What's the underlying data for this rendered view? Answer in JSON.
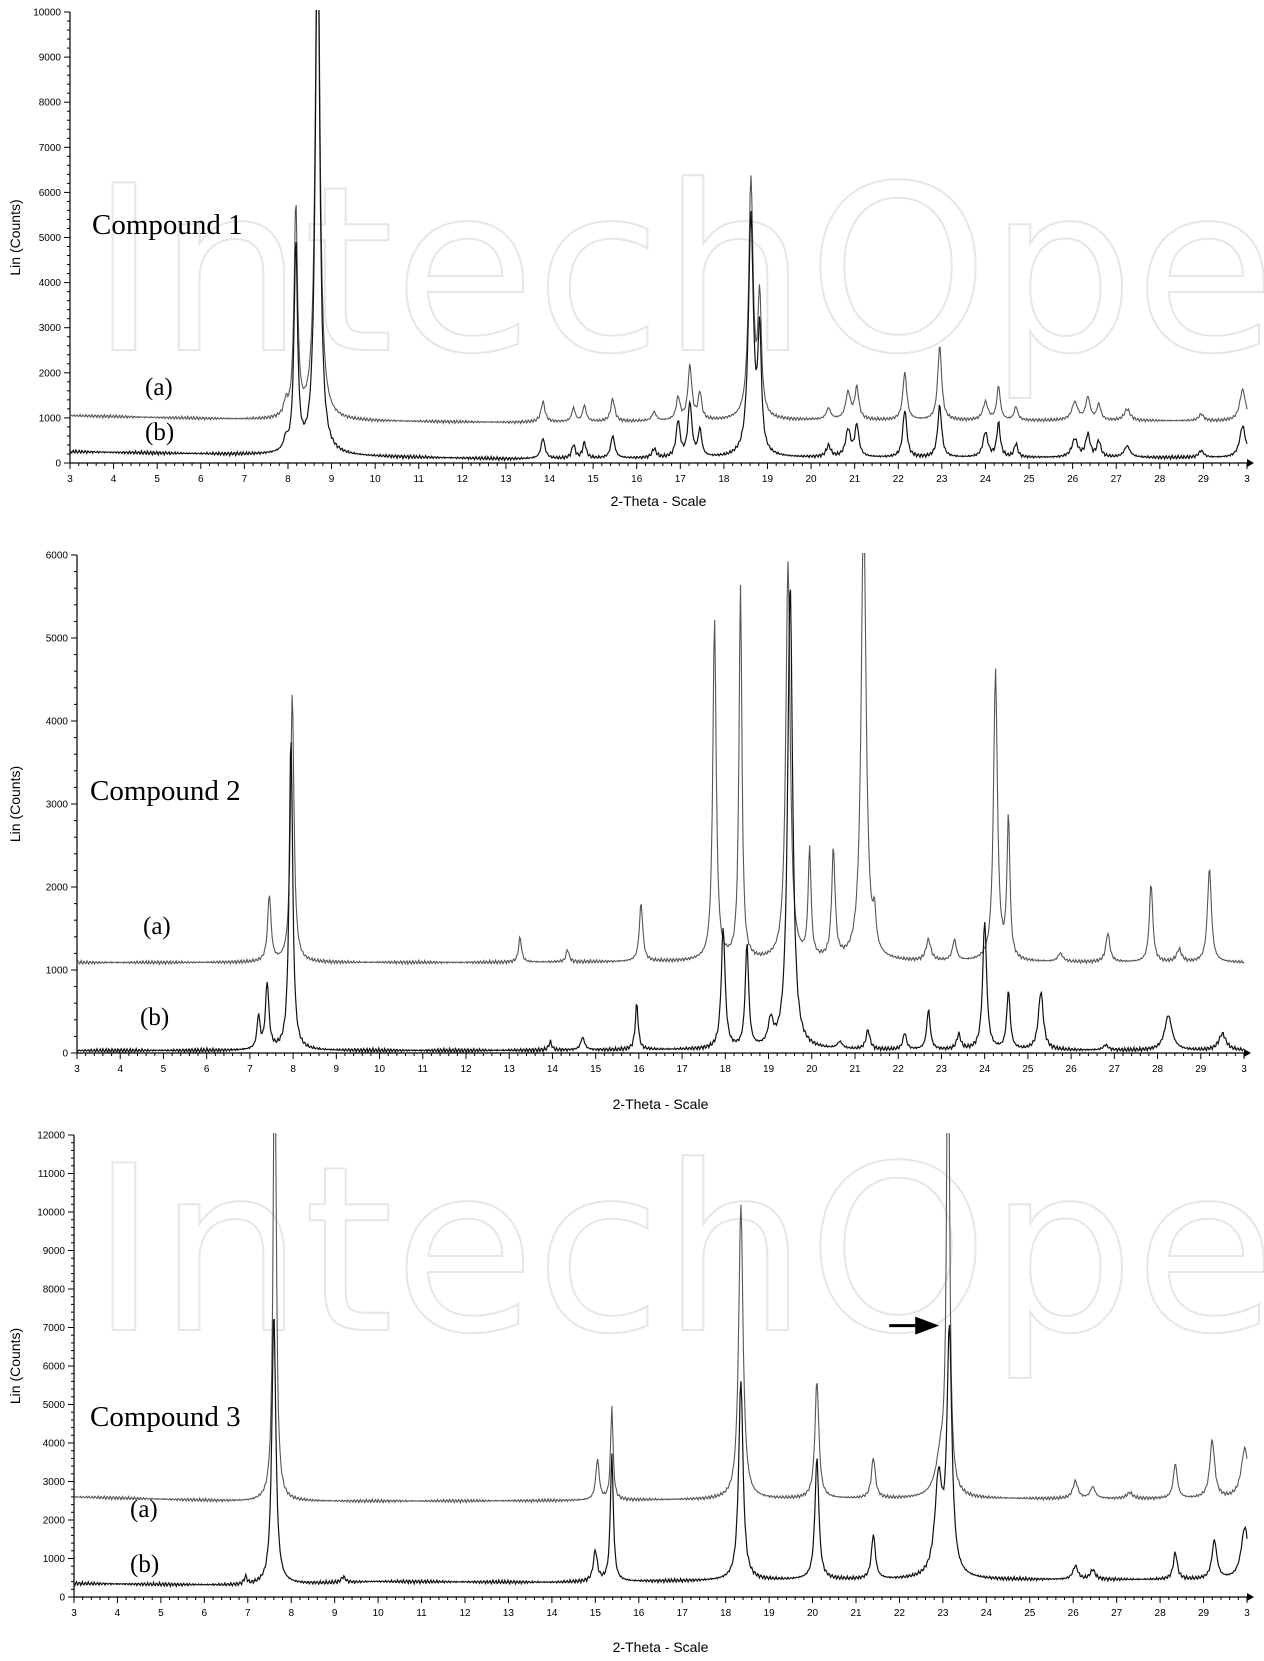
{
  "watermark": "IntechOpen",
  "chart_data": [
    {
      "type": "line",
      "title": "Compound 1",
      "xlabel": "2-Theta - Scale",
      "ylabel": "Lin (Counts)",
      "xlim": [
        3,
        30
      ],
      "ylim": [
        0,
        10000
      ],
      "x_tick_labels": [
        "3",
        "4",
        "5",
        "6",
        "7",
        "8",
        "9",
        "10",
        "11",
        "12",
        "13",
        "14",
        "15",
        "16",
        "17",
        "18",
        "19",
        "20",
        "21",
        "22",
        "23",
        "24",
        "25",
        "26",
        "27",
        "28",
        "29",
        "3"
      ],
      "y_ticks": [
        0,
        1000,
        2000,
        3000,
        4000,
        5000,
        6000,
        7000,
        8000,
        9000,
        10000
      ],
      "series": [
        {
          "name": "(a)",
          "baseline": [
            [
              3,
              1050
            ],
            [
              8,
              940
            ],
            [
              13,
              900
            ],
            [
              20,
              950
            ],
            [
              30,
              930
            ]
          ],
          "peaks": [
            [
              7.95,
              300,
              0.08
            ],
            [
              8.18,
              4700,
              0.07
            ],
            [
              8.68,
              12000,
              0.09
            ],
            [
              13.85,
              450,
              0.08
            ],
            [
              14.55,
              300,
              0.07
            ],
            [
              14.8,
              350,
              0.07
            ],
            [
              15.45,
              500,
              0.08
            ],
            [
              16.4,
              200,
              0.08
            ],
            [
              16.95,
              500,
              0.08
            ],
            [
              17.22,
              1200,
              0.08
            ],
            [
              17.45,
              600,
              0.07
            ],
            [
              18.62,
              5300,
              0.09
            ],
            [
              18.82,
              2600,
              0.07
            ],
            [
              20.4,
              250,
              0.09
            ],
            [
              20.85,
              600,
              0.1
            ],
            [
              21.05,
              700,
              0.08
            ],
            [
              22.15,
              1050,
              0.08
            ],
            [
              22.95,
              1650,
              0.08
            ],
            [
              24.0,
              400,
              0.1
            ],
            [
              24.3,
              750,
              0.07
            ],
            [
              24.7,
              300,
              0.07
            ],
            [
              26.05,
              400,
              0.12
            ],
            [
              26.35,
              500,
              0.09
            ],
            [
              26.6,
              350,
              0.08
            ],
            [
              27.25,
              250,
              0.12
            ],
            [
              28.95,
              150,
              0.1
            ],
            [
              29.9,
              700,
              0.12
            ]
          ]
        },
        {
          "name": "(b)",
          "baseline": [
            [
              3,
              250
            ],
            [
              8,
              170
            ],
            [
              13,
              90
            ],
            [
              20,
              120
            ],
            [
              30,
              120
            ]
          ],
          "peaks": [
            [
              7.95,
              250,
              0.08
            ],
            [
              8.18,
              4650,
              0.07
            ],
            [
              8.68,
              12000,
              0.09
            ],
            [
              13.85,
              450,
              0.08
            ],
            [
              14.55,
              300,
              0.07
            ],
            [
              14.8,
              350,
              0.07
            ],
            [
              15.45,
              500,
              0.08
            ],
            [
              16.4,
              200,
              0.08
            ],
            [
              16.95,
              800,
              0.08
            ],
            [
              17.22,
              1200,
              0.08
            ],
            [
              17.45,
              600,
              0.07
            ],
            [
              18.62,
              5300,
              0.1
            ],
            [
              18.82,
              2600,
              0.07
            ],
            [
              20.4,
              250,
              0.09
            ],
            [
              20.85,
              600,
              0.1
            ],
            [
              21.05,
              700,
              0.08
            ],
            [
              22.15,
              1050,
              0.08
            ],
            [
              22.95,
              1150,
              0.08
            ],
            [
              24.0,
              550,
              0.1
            ],
            [
              24.3,
              750,
              0.07
            ],
            [
              24.7,
              300,
              0.07
            ],
            [
              26.05,
              400,
              0.12
            ],
            [
              26.35,
              500,
              0.09
            ],
            [
              26.6,
              350,
              0.08
            ],
            [
              27.25,
              250,
              0.12
            ],
            [
              28.95,
              150,
              0.1
            ],
            [
              29.9,
              700,
              0.12
            ]
          ]
        }
      ]
    },
    {
      "type": "line",
      "title": "Compound 2",
      "xlabel": "2-Theta - Scale",
      "ylabel": "Lin (Counts)",
      "xlim": [
        3,
        30
      ],
      "ylim": [
        0,
        6000
      ],
      "x_tick_labels": [
        "3",
        "4",
        "5",
        "6",
        "7",
        "8",
        "9",
        "10",
        "11",
        "12",
        "13",
        "14",
        "15",
        "16",
        "17",
        "18",
        "19",
        "20",
        "21",
        "22",
        "23",
        "24",
        "25",
        "26",
        "27",
        "28",
        "29",
        "3"
      ],
      "y_ticks": [
        0,
        1000,
        2000,
        3000,
        4000,
        5000,
        6000
      ],
      "y_tick_labels": [
        "0",
        "1000",
        "2000",
        "3000",
        "4000",
        "5000",
        "6000"
      ],
      "series": [
        {
          "name": "(a)",
          "baseline": [
            [
              3,
              1090
            ],
            [
              12,
              1090
            ],
            [
              17,
              1100
            ],
            [
              30,
              1090
            ]
          ],
          "peaks": [
            [
              7.45,
              800,
              0.07
            ],
            [
              7.98,
              3250,
              0.07
            ],
            [
              13.25,
              300,
              0.06
            ],
            [
              14.35,
              150,
              0.06
            ],
            [
              16.05,
              700,
              0.07
            ],
            [
              17.75,
              4100,
              0.07
            ],
            [
              18.35,
              4500,
              0.06
            ],
            [
              19.45,
              4800,
              0.09
            ],
            [
              19.95,
              1300,
              0.06
            ],
            [
              20.5,
              1300,
              0.07
            ],
            [
              21.2,
              5500,
              0.1
            ],
            [
              21.45,
              400,
              0.06
            ],
            [
              22.7,
              250,
              0.1
            ],
            [
              23.3,
              250,
              0.08
            ],
            [
              24.25,
              3500,
              0.08
            ],
            [
              24.55,
              1700,
              0.06
            ],
            [
              25.75,
              100,
              0.1
            ],
            [
              26.85,
              350,
              0.08
            ],
            [
              27.85,
              950,
              0.07
            ],
            [
              28.5,
              150,
              0.1
            ],
            [
              29.2,
              1130,
              0.08
            ]
          ]
        },
        {
          "name": "(b)",
          "baseline": [
            [
              3,
              30
            ],
            [
              12,
              30
            ],
            [
              17,
              40
            ],
            [
              30,
              30
            ]
          ],
          "peaks": [
            [
              7.2,
              400,
              0.06
            ],
            [
              7.4,
              800,
              0.07
            ],
            [
              7.95,
              3800,
              0.07
            ],
            [
              13.95,
              100,
              0.06
            ],
            [
              14.7,
              150,
              0.08
            ],
            [
              15.95,
              550,
              0.06
            ],
            [
              17.95,
              1450,
              0.08
            ],
            [
              18.5,
              1250,
              0.07
            ],
            [
              19.05,
              300,
              0.1
            ],
            [
              19.5,
              5600,
              0.1
            ],
            [
              20.65,
              80,
              0.1
            ],
            [
              21.3,
              230,
              0.08
            ],
            [
              22.15,
              200,
              0.07
            ],
            [
              22.7,
              480,
              0.07
            ],
            [
              23.4,
              180,
              0.08
            ],
            [
              24.0,
              1550,
              0.08
            ],
            [
              24.55,
              700,
              0.07
            ],
            [
              25.3,
              700,
              0.1
            ],
            [
              26.8,
              60,
              0.1
            ],
            [
              28.25,
              420,
              0.15
            ],
            [
              29.5,
              200,
              0.15
            ]
          ]
        }
      ]
    },
    {
      "type": "line",
      "title": "Compound 3",
      "xlabel": "2-Theta - Scale",
      "ylabel": "Lin (Counts)",
      "xlim": [
        3,
        30
      ],
      "ylim": [
        0,
        12000
      ],
      "x_tick_labels": [
        "3",
        "4",
        "5",
        "6",
        "7",
        "8",
        "9",
        "10",
        "11",
        "12",
        "13",
        "14",
        "15",
        "16",
        "17",
        "18",
        "19",
        "20",
        "21",
        "22",
        "23",
        "24",
        "25",
        "26",
        "27",
        "28",
        "29",
        "3"
      ],
      "y_ticks": [
        0,
        1000,
        2000,
        3000,
        4000,
        5000,
        6000,
        7000,
        8000,
        9000,
        10000,
        11000,
        12000
      ],
      "series": [
        {
          "name": "(a)",
          "baseline": [
            [
              3,
              2600
            ],
            [
              7,
              2480
            ],
            [
              14,
              2500
            ],
            [
              20,
              2550
            ],
            [
              30,
              2550
            ]
          ],
          "peaks": [
            [
              7.62,
              13000,
              0.06
            ],
            [
              15.05,
              1050,
              0.07
            ],
            [
              15.38,
              2450,
              0.05
            ],
            [
              18.35,
              7650,
              0.09
            ],
            [
              20.1,
              3050,
              0.08
            ],
            [
              21.4,
              1050,
              0.08
            ],
            [
              23.12,
              13000,
              0.06
            ],
            [
              22.95,
              1000,
              0.2
            ],
            [
              26.05,
              450,
              0.1
            ],
            [
              26.45,
              300,
              0.1
            ],
            [
              27.3,
              150,
              0.12
            ],
            [
              28.35,
              900,
              0.08
            ],
            [
              29.2,
              1500,
              0.1
            ],
            [
              29.95,
              1300,
              0.15
            ]
          ]
        },
        {
          "name": "(b)",
          "baseline": [
            [
              3,
              350
            ],
            [
              7,
              300
            ],
            [
              10,
              400
            ],
            [
              14,
              380
            ],
            [
              20,
              450
            ],
            [
              30,
              450
            ]
          ],
          "peaks": [
            [
              6.95,
              200,
              0.06
            ],
            [
              7.6,
              7100,
              0.08
            ],
            [
              9.2,
              150,
              0.08
            ],
            [
              15.0,
              800,
              0.08
            ],
            [
              15.38,
              3300,
              0.06
            ],
            [
              18.35,
              5200,
              0.09
            ],
            [
              20.1,
              3150,
              0.08
            ],
            [
              21.4,
              1150,
              0.08
            ],
            [
              22.9,
              2500,
              0.15
            ],
            [
              23.15,
              6300,
              0.1
            ],
            [
              26.05,
              350,
              0.1
            ],
            [
              26.45,
              250,
              0.1
            ],
            [
              28.35,
              700,
              0.08
            ],
            [
              29.25,
              1000,
              0.1
            ],
            [
              29.95,
              1350,
              0.15
            ]
          ]
        }
      ],
      "annotations": [
        "arrow pointing to peak at 2θ ≈ 23.1"
      ]
    }
  ]
}
